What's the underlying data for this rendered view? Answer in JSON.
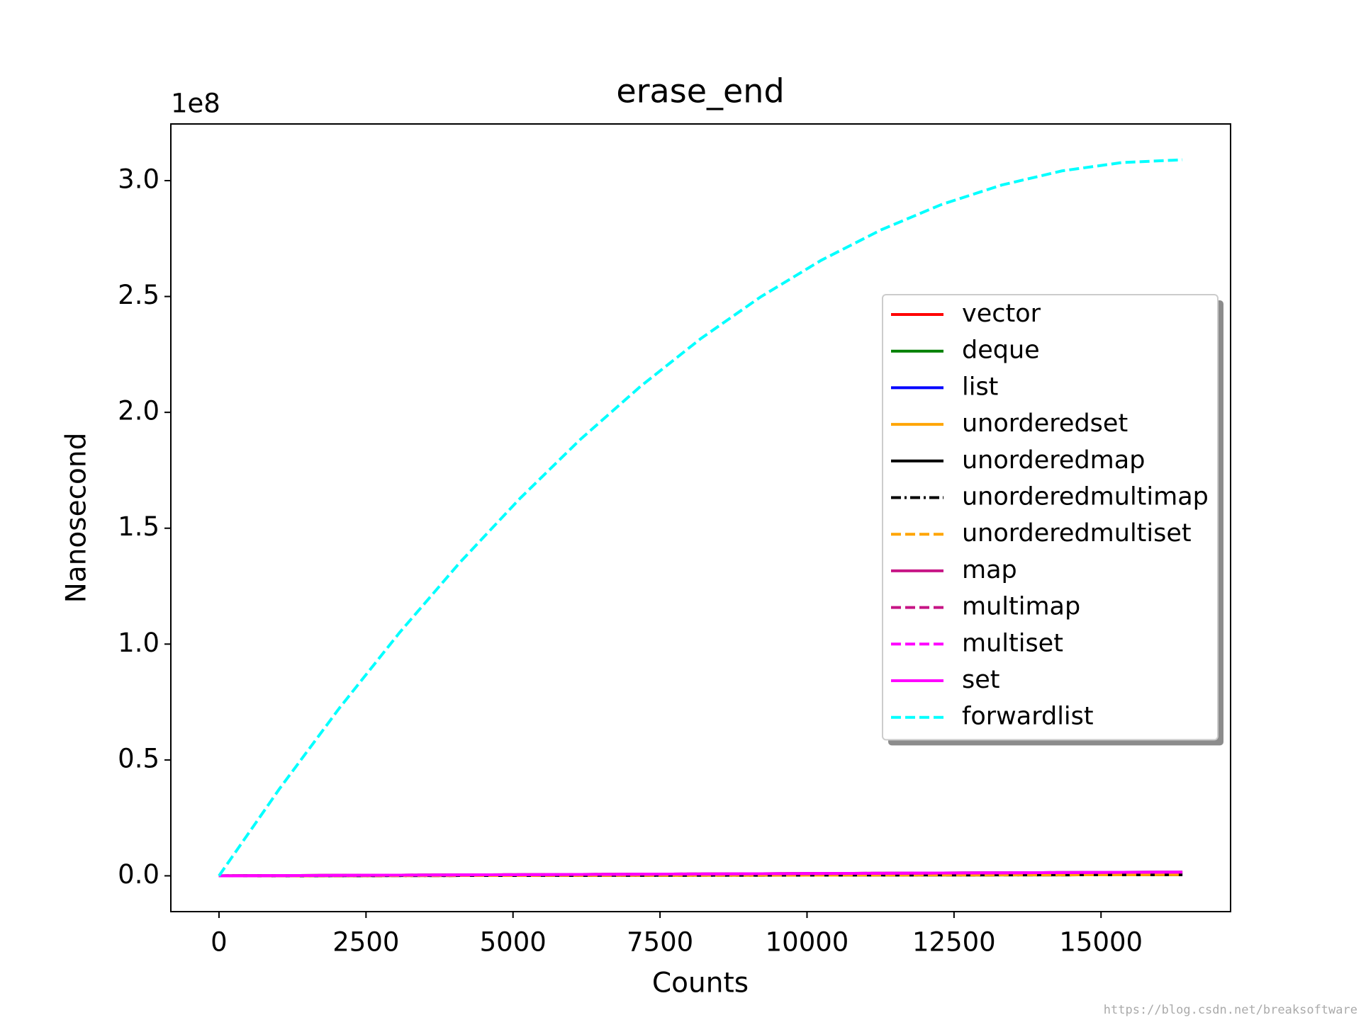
{
  "chart_data": {
    "type": "line",
    "title": "erase_end",
    "xlabel": "Counts",
    "ylabel": "Nanosecond",
    "y_offset_label": "1e8",
    "watermark": "https://blog.csdn.net/breaksoftware",
    "x": [
      0,
      1024,
      2048,
      3072,
      4096,
      5120,
      6144,
      7168,
      8192,
      9216,
      10240,
      11264,
      12288,
      13312,
      14336,
      15360,
      16384
    ],
    "xlim": [
      -819.2,
      17203.2
    ],
    "xticks": [
      0,
      2500,
      5000,
      7500,
      10000,
      12500,
      15000
    ],
    "ylim": [
      -0.1545,
      3.2445
    ],
    "yticks": [
      {
        "value": 0,
        "label": "0.0"
      },
      {
        "value": 0.5,
        "label": "0.5"
      },
      {
        "value": 1,
        "label": "1.0"
      },
      {
        "value": 1.5,
        "label": "1.5"
      },
      {
        "value": 2,
        "label": "2.0"
      },
      {
        "value": 2.5,
        "label": "2.5"
      },
      {
        "value": 3,
        "label": "3.0"
      }
    ],
    "legend": "right",
    "series": [
      {
        "name": "vector",
        "color": "#ff0000",
        "linestyle": "-",
        "values": [
          0,
          0.001,
          0.002,
          0.003,
          0.004,
          0.005,
          0.006,
          0.007,
          0.008,
          0.009,
          0.01,
          0.011,
          0.012,
          0.013,
          0.014,
          0.015,
          0.016
        ]
      },
      {
        "name": "deque",
        "color": "#008000",
        "linestyle": "-",
        "values": [
          0,
          0.001,
          0.002,
          0.003,
          0.004,
          0.005,
          0.006,
          0.007,
          0.008,
          0.009,
          0.01,
          0.011,
          0.012,
          0.013,
          0.014,
          0.015,
          0.016
        ]
      },
      {
        "name": "list",
        "color": "#0000ff",
        "linestyle": "-",
        "values": [
          0,
          0.0005,
          0.001,
          0.0015,
          0.002,
          0.0025,
          0.003,
          0.0035,
          0.004,
          0.0045,
          0.005,
          0.0055,
          0.006,
          0.0065,
          0.007,
          0.0075,
          0.008
        ]
      },
      {
        "name": "unorderedset",
        "color": "#ffa500",
        "linestyle": "-",
        "values": [
          0,
          0.0005,
          0.001,
          0.0015,
          0.002,
          0.0025,
          0.003,
          0.0035,
          0.004,
          0.0045,
          0.005,
          0.0055,
          0.006,
          0.0065,
          0.007,
          0.0075,
          0.008
        ]
      },
      {
        "name": "unorderedmap",
        "color": "#000000",
        "linestyle": "-",
        "values": [
          0,
          0.0003,
          0.0006,
          0.0009,
          0.0012,
          0.0015,
          0.0018,
          0.0021,
          0.0024,
          0.0027,
          0.003,
          0.0033,
          0.0036,
          0.0039,
          0.0042,
          0.0045,
          0.0048
        ]
      },
      {
        "name": "unorderedmultimap",
        "color": "#000000",
        "linestyle": "-.",
        "values": [
          0,
          0.0003,
          0.0006,
          0.0009,
          0.0012,
          0.0015,
          0.0018,
          0.0021,
          0.0024,
          0.0027,
          0.003,
          0.0033,
          0.0036,
          0.0039,
          0.0042,
          0.0045,
          0.0048
        ]
      },
      {
        "name": "unorderedmultiset",
        "color": "#ffa500",
        "linestyle": "--",
        "values": [
          0,
          0.0003,
          0.0006,
          0.0009,
          0.0012,
          0.0015,
          0.0018,
          0.0021,
          0.0024,
          0.0027,
          0.003,
          0.0033,
          0.0036,
          0.0039,
          0.0042,
          0.0045,
          0.0048
        ]
      },
      {
        "name": "map",
        "color": "#c71585",
        "linestyle": "-",
        "values": [
          0,
          0.001,
          0.002,
          0.003,
          0.004,
          0.005,
          0.006,
          0.007,
          0.008,
          0.009,
          0.01,
          0.011,
          0.012,
          0.013,
          0.014,
          0.015,
          0.016
        ]
      },
      {
        "name": "multimap",
        "color": "#c71585",
        "linestyle": "--",
        "values": [
          0,
          0.001,
          0.002,
          0.003,
          0.004,
          0.005,
          0.006,
          0.007,
          0.008,
          0.009,
          0.01,
          0.011,
          0.012,
          0.013,
          0.014,
          0.015,
          0.016
        ]
      },
      {
        "name": "multiset",
        "color": "#ff00ff",
        "linestyle": "--",
        "values": [
          0,
          0.001,
          0.002,
          0.003,
          0.004,
          0.005,
          0.006,
          0.007,
          0.008,
          0.009,
          0.01,
          0.011,
          0.012,
          0.013,
          0.014,
          0.015,
          0.016
        ]
      },
      {
        "name": "set",
        "color": "#ff00ff",
        "linestyle": "-",
        "values": [
          0,
          0.001,
          0.002,
          0.003,
          0.004,
          0.005,
          0.006,
          0.007,
          0.008,
          0.009,
          0.01,
          0.011,
          0.012,
          0.013,
          0.014,
          0.015,
          0.016
        ]
      },
      {
        "name": "forwardlist",
        "color": "#00ffff",
        "linestyle": "--",
        "values": [
          0,
          0.374,
          0.724,
          1.05,
          1.352,
          1.629,
          1.883,
          2.112,
          2.318,
          2.499,
          2.656,
          2.788,
          2.897,
          2.981,
          3.042,
          3.078,
          3.09
        ]
      }
    ]
  }
}
